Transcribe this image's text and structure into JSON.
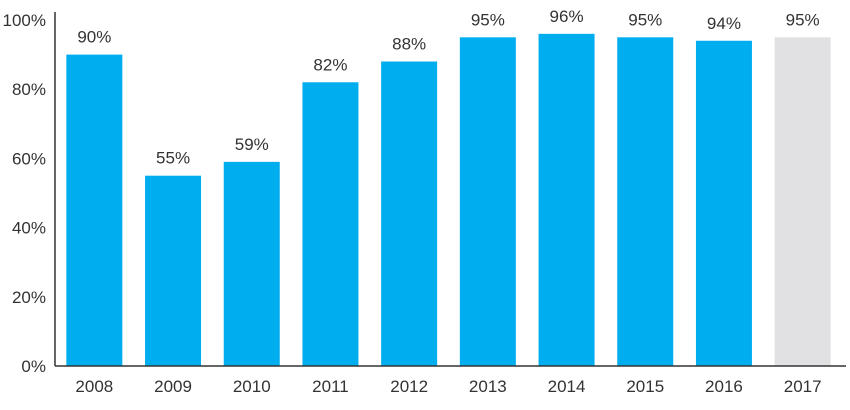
{
  "chart_data": {
    "type": "bar",
    "title": "",
    "xlabel": "",
    "ylabel": "",
    "categories": [
      "2008",
      "2009",
      "2010",
      "2011",
      "2012",
      "2013",
      "2014",
      "2015",
      "2016",
      "2017"
    ],
    "values": [
      90,
      55,
      59,
      82,
      88,
      95,
      96,
      95,
      94,
      95
    ],
    "data_labels": [
      "90%",
      "55%",
      "59%",
      "82%",
      "88%",
      "95%",
      "96%",
      "95%",
      "94%",
      "95%"
    ],
    "ylim": [
      0,
      100
    ],
    "y_ticks": [
      0,
      20,
      40,
      60,
      80,
      100
    ],
    "y_tick_labels": [
      "0%",
      "20%",
      "40%",
      "60%",
      "80%",
      "100%"
    ],
    "grid": false,
    "legend": "none",
    "colors": {
      "bar": "#00aeef",
      "bar_highlight": "#e1e1e3",
      "axis": "#333333",
      "text": "#333333"
    },
    "highlighted_categories": [
      "2017"
    ]
  }
}
